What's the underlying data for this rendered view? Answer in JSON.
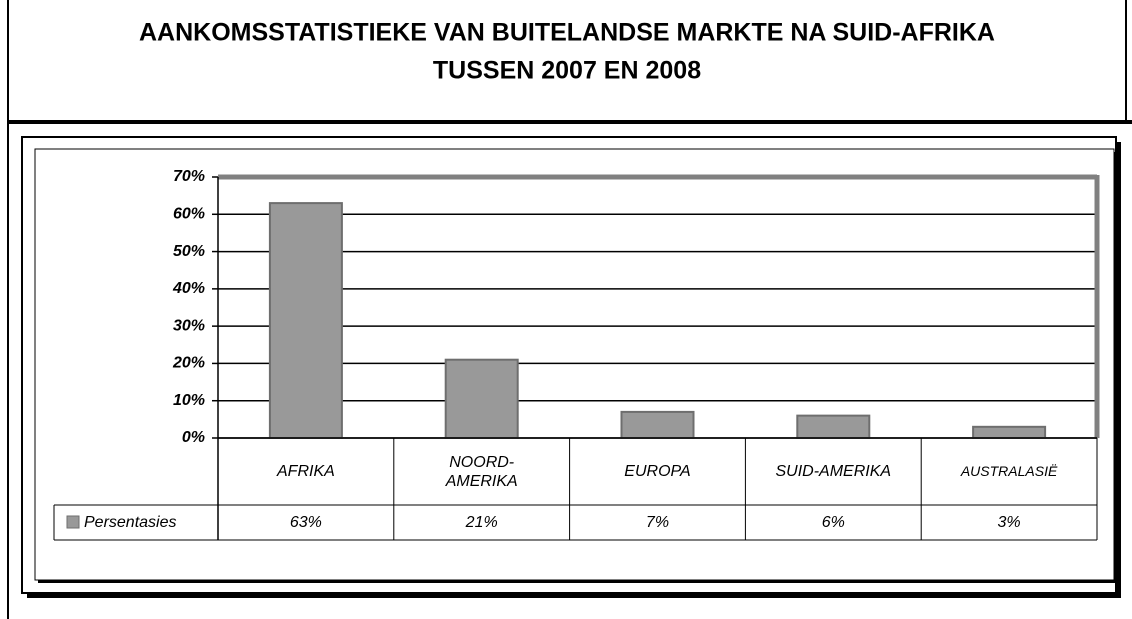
{
  "chart_data": {
    "type": "bar",
    "title": [
      "AANKOMSSTATISTIEKE VAN BUITELANDSE MARKTE NA SUID-AFRIKA",
      "TUSSEN 2007 EN 2008"
    ],
    "categories": [
      "AFRIKA",
      "NOORD-\nAMERIKA",
      "EUROPA",
      "SUID-AMERIKA",
      "AUSTRALASIË"
    ],
    "series": [
      {
        "name": "Persentasies",
        "color": "#999999",
        "values": [
          63,
          21,
          7,
          6,
          3
        ],
        "value_labels": [
          "63%",
          "21%",
          "7%",
          "6%",
          "3%"
        ]
      }
    ],
    "ylim": [
      0,
      70
    ],
    "yticks": [
      {
        "value": 0,
        "label": "0%"
      },
      {
        "value": 10,
        "label": "10%"
      },
      {
        "value": 20,
        "label": "20%"
      },
      {
        "value": 30,
        "label": "30%"
      },
      {
        "value": 40,
        "label": "40%"
      },
      {
        "value": 50,
        "label": "50%"
      },
      {
        "value": 60,
        "label": "60%"
      },
      {
        "value": 70,
        "label": "70%"
      }
    ],
    "grid": true
  }
}
